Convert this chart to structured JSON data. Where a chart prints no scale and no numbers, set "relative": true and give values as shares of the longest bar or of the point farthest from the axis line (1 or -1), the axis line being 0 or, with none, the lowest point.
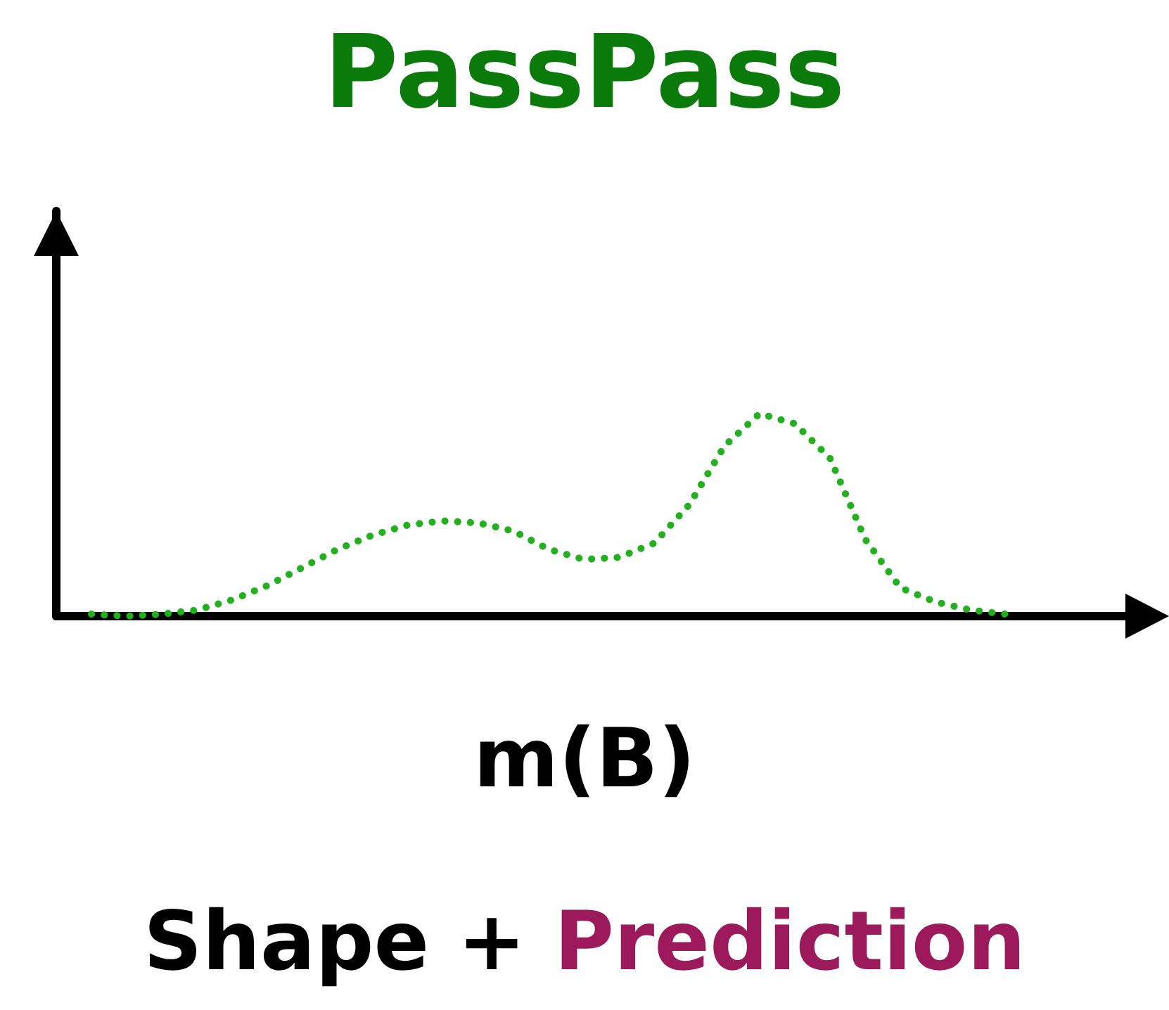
{
  "chart_data": {
    "type": "line",
    "title": "PassPass",
    "xlabel": "m(B)",
    "annotations": [
      "Shape +",
      "Prediction"
    ],
    "relative": true,
    "marker": "none",
    "line_style": "dotted",
    "categories": [
      null,
      null,
      null,
      null,
      null,
      null,
      null,
      null,
      null,
      null,
      null,
      null,
      null,
      null,
      null,
      null,
      null,
      null,
      null,
      null,
      null,
      null,
      null,
      null,
      null,
      null,
      null,
      null,
      null,
      null,
      null,
      null
    ],
    "series": [
      {
        "color": "#22b01e",
        "values": [
          null,
          0.01,
          0,
          0.01,
          0.03,
          0.08,
          0.15,
          0.24,
          0.33,
          0.4,
          0.45,
          0.47,
          0.46,
          0.42,
          0.33,
          0.28,
          0.29,
          0.36,
          0.55,
          0.84,
          1,
          0.95,
          0.78,
          0.38,
          0.14,
          0.07,
          0.03,
          0.01,
          null,
          null,
          null,
          null
        ]
      }
    ]
  }
}
